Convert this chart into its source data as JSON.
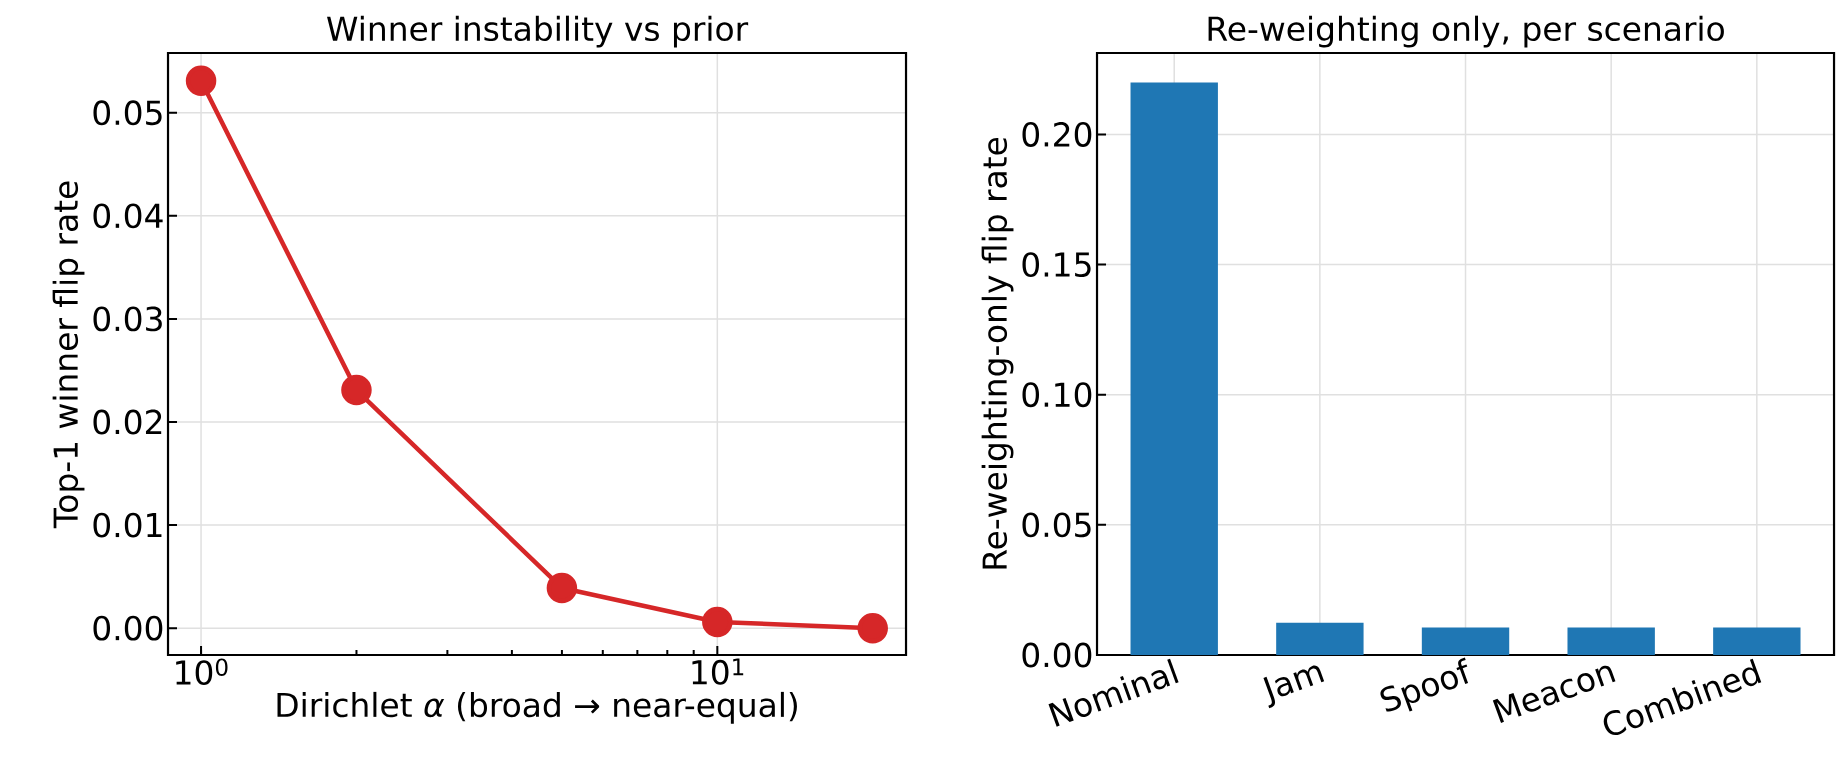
{
  "chart_data": [
    {
      "type": "line",
      "title": "Winner instability vs prior",
      "xlabel": "Dirichlet *α* (broad → near-equal)",
      "ylabel": "Top-1 winner flip rate",
      "x": [
        1,
        2,
        5,
        10,
        20
      ],
      "values": [
        0.0531,
        0.0231,
        0.0039,
        0.0006,
        0.0
      ],
      "color": "#d62728",
      "marker": "circle",
      "log": "x",
      "grid": true,
      "xlim": [
        0.863,
        23.2
      ],
      "ylim": [
        -0.0026,
        0.0558
      ],
      "xticks": [
        {
          "value": 1,
          "label": "10$^{0}$"
        },
        {
          "value": 10,
          "label": "10$^{1}$"
        }
      ],
      "yticks": [
        {
          "value": 0,
          "label": "0.00"
        },
        {
          "value": 0.01,
          "label": "0.01"
        },
        {
          "value": 0.02,
          "label": "0.02"
        },
        {
          "value": 0.03,
          "label": "0.03"
        },
        {
          "value": 0.04,
          "label": "0.04"
        },
        {
          "value": 0.05,
          "label": "0.05"
        }
      ]
    },
    {
      "type": "bar",
      "title": "Re-weighting only, per scenario",
      "ylabel": "Re-weighting-only flip rate",
      "categories": [
        "Nominal",
        "Jam",
        "Spoof",
        "Meacon",
        "Combined"
      ],
      "values": [
        0.22,
        0.0124,
        0.0106,
        0.0106,
        0.0106
      ],
      "color": "#1f77b4",
      "grid": true,
      "ylim": [
        0,
        0.2313
      ],
      "yticks": [
        {
          "value": 0,
          "label": "0.00"
        },
        {
          "value": 0.05,
          "label": "0.05"
        },
        {
          "value": 0.1,
          "label": "0.10"
        },
        {
          "value": 0.15,
          "label": "0.15"
        },
        {
          "value": 0.2,
          "label": "0.20"
        }
      ]
    }
  ]
}
